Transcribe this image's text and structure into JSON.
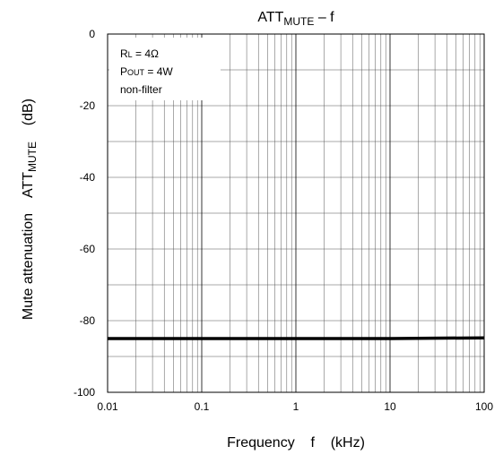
{
  "chart_data": {
    "type": "line",
    "title": "ATT",
    "title_subscript": "MUTE",
    "title_suffix": " – f",
    "xlabel": "Frequency    f    (kHz)",
    "ylabel": "Mute attenuation    ATT",
    "ylabel_subscript": "MUTE",
    "ylabel_unit": "    (dB)",
    "x_scale": "log",
    "xlim": [
      0.01,
      100
    ],
    "ylim": [
      -100,
      0
    ],
    "x_ticks": [
      "0.01",
      "0.1",
      "1",
      "10",
      "100"
    ],
    "y_ticks": [
      "0",
      "-20",
      "-40",
      "-60",
      "-80",
      "-100"
    ],
    "grid": true,
    "conditions": [
      {
        "main": "R",
        "sub": "L",
        "rest": " = 4Ω"
      },
      {
        "main": "P",
        "sub": "OUT",
        "rest": " = 4W"
      },
      {
        "main": "non-filter",
        "sub": "",
        "rest": ""
      }
    ],
    "series": [
      {
        "color": "#000000",
        "x": [
          0.01,
          0.1,
          1,
          10,
          100
        ],
        "y": [
          -85,
          -85,
          -85,
          -85,
          -84.8
        ]
      }
    ]
  }
}
